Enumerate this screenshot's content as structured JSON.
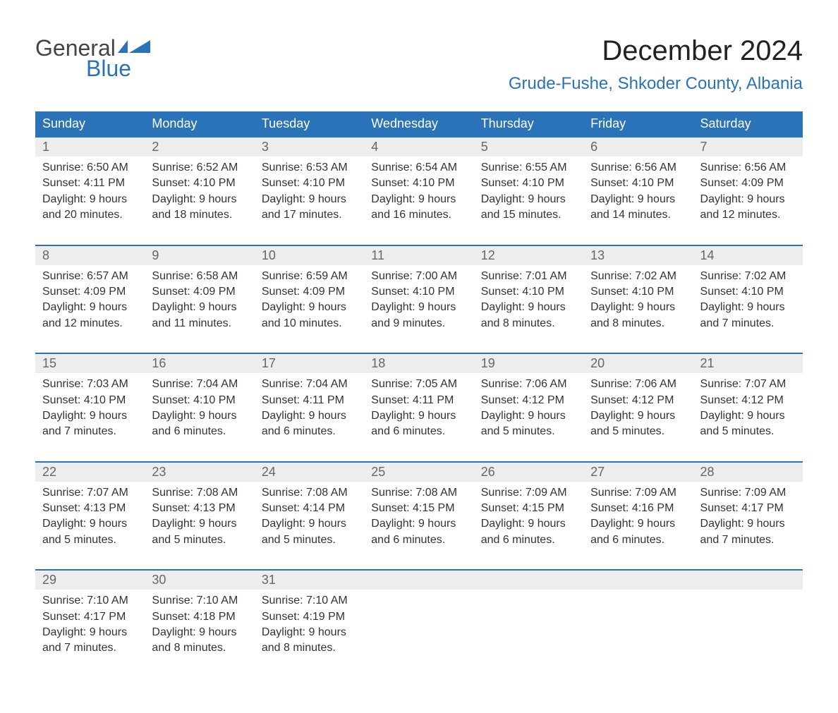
{
  "logo": {
    "text1": "General",
    "text2": "Blue",
    "color1": "#444444",
    "color2": "#2a73b8",
    "flag_color": "#2a73b8"
  },
  "title": "December 2024",
  "location": "Grude-Fushe, Shkoder County, Albania",
  "colors": {
    "header_bg": "#2a73b8",
    "header_text": "#ffffff",
    "daynum_bg": "#ededed",
    "daynum_text": "#666666",
    "body_text": "#333333",
    "sep": "#2a73b8"
  },
  "day_headers": [
    "Sunday",
    "Monday",
    "Tuesday",
    "Wednesday",
    "Thursday",
    "Friday",
    "Saturday"
  ],
  "weeks": [
    [
      {
        "n": "1",
        "sunrise": "6:50 AM",
        "sunset": "4:11 PM",
        "daylight": "9 hours and 20 minutes."
      },
      {
        "n": "2",
        "sunrise": "6:52 AM",
        "sunset": "4:10 PM",
        "daylight": "9 hours and 18 minutes."
      },
      {
        "n": "3",
        "sunrise": "6:53 AM",
        "sunset": "4:10 PM",
        "daylight": "9 hours and 17 minutes."
      },
      {
        "n": "4",
        "sunrise": "6:54 AM",
        "sunset": "4:10 PM",
        "daylight": "9 hours and 16 minutes."
      },
      {
        "n": "5",
        "sunrise": "6:55 AM",
        "sunset": "4:10 PM",
        "daylight": "9 hours and 15 minutes."
      },
      {
        "n": "6",
        "sunrise": "6:56 AM",
        "sunset": "4:10 PM",
        "daylight": "9 hours and 14 minutes."
      },
      {
        "n": "7",
        "sunrise": "6:56 AM",
        "sunset": "4:09 PM",
        "daylight": "9 hours and 12 minutes."
      }
    ],
    [
      {
        "n": "8",
        "sunrise": "6:57 AM",
        "sunset": "4:09 PM",
        "daylight": "9 hours and 12 minutes."
      },
      {
        "n": "9",
        "sunrise": "6:58 AM",
        "sunset": "4:09 PM",
        "daylight": "9 hours and 11 minutes."
      },
      {
        "n": "10",
        "sunrise": "6:59 AM",
        "sunset": "4:09 PM",
        "daylight": "9 hours and 10 minutes."
      },
      {
        "n": "11",
        "sunrise": "7:00 AM",
        "sunset": "4:10 PM",
        "daylight": "9 hours and 9 minutes."
      },
      {
        "n": "12",
        "sunrise": "7:01 AM",
        "sunset": "4:10 PM",
        "daylight": "9 hours and 8 minutes."
      },
      {
        "n": "13",
        "sunrise": "7:02 AM",
        "sunset": "4:10 PM",
        "daylight": "9 hours and 8 minutes."
      },
      {
        "n": "14",
        "sunrise": "7:02 AM",
        "sunset": "4:10 PM",
        "daylight": "9 hours and 7 minutes."
      }
    ],
    [
      {
        "n": "15",
        "sunrise": "7:03 AM",
        "sunset": "4:10 PM",
        "daylight": "9 hours and 7 minutes."
      },
      {
        "n": "16",
        "sunrise": "7:04 AM",
        "sunset": "4:10 PM",
        "daylight": "9 hours and 6 minutes."
      },
      {
        "n": "17",
        "sunrise": "7:04 AM",
        "sunset": "4:11 PM",
        "daylight": "9 hours and 6 minutes."
      },
      {
        "n": "18",
        "sunrise": "7:05 AM",
        "sunset": "4:11 PM",
        "daylight": "9 hours and 6 minutes."
      },
      {
        "n": "19",
        "sunrise": "7:06 AM",
        "sunset": "4:12 PM",
        "daylight": "9 hours and 5 minutes."
      },
      {
        "n": "20",
        "sunrise": "7:06 AM",
        "sunset": "4:12 PM",
        "daylight": "9 hours and 5 minutes."
      },
      {
        "n": "21",
        "sunrise": "7:07 AM",
        "sunset": "4:12 PM",
        "daylight": "9 hours and 5 minutes."
      }
    ],
    [
      {
        "n": "22",
        "sunrise": "7:07 AM",
        "sunset": "4:13 PM",
        "daylight": "9 hours and 5 minutes."
      },
      {
        "n": "23",
        "sunrise": "7:08 AM",
        "sunset": "4:13 PM",
        "daylight": "9 hours and 5 minutes."
      },
      {
        "n": "24",
        "sunrise": "7:08 AM",
        "sunset": "4:14 PM",
        "daylight": "9 hours and 5 minutes."
      },
      {
        "n": "25",
        "sunrise": "7:08 AM",
        "sunset": "4:15 PM",
        "daylight": "9 hours and 6 minutes."
      },
      {
        "n": "26",
        "sunrise": "7:09 AM",
        "sunset": "4:15 PM",
        "daylight": "9 hours and 6 minutes."
      },
      {
        "n": "27",
        "sunrise": "7:09 AM",
        "sunset": "4:16 PM",
        "daylight": "9 hours and 6 minutes."
      },
      {
        "n": "28",
        "sunrise": "7:09 AM",
        "sunset": "4:17 PM",
        "daylight": "9 hours and 7 minutes."
      }
    ],
    [
      {
        "n": "29",
        "sunrise": "7:10 AM",
        "sunset": "4:17 PM",
        "daylight": "9 hours and 7 minutes."
      },
      {
        "n": "30",
        "sunrise": "7:10 AM",
        "sunset": "4:18 PM",
        "daylight": "9 hours and 8 minutes."
      },
      {
        "n": "31",
        "sunrise": "7:10 AM",
        "sunset": "4:19 PM",
        "daylight": "9 hours and 8 minutes."
      },
      null,
      null,
      null,
      null
    ]
  ],
  "labels": {
    "sunrise": "Sunrise:",
    "sunset": "Sunset:",
    "daylight": "Daylight:"
  }
}
